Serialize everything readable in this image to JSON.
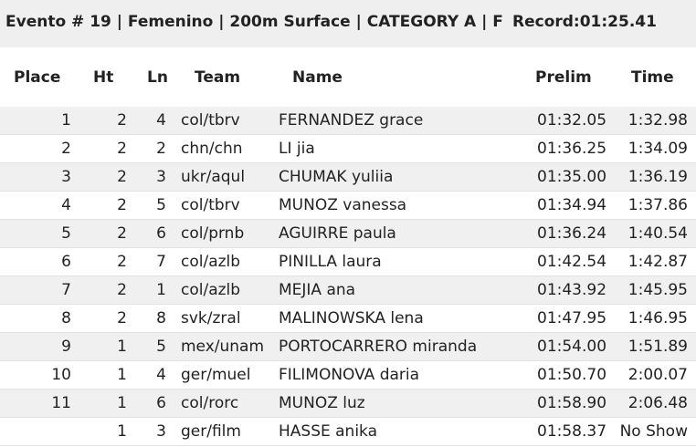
{
  "header": {
    "title": "Evento # 19 | Femenino | 200m Surface | CATEGORY A | F",
    "record": "Record:01:25.41"
  },
  "table": {
    "columns": [
      "Place",
      "Ht",
      "Ln",
      "Team",
      "Name",
      "Prelim",
      "Time"
    ],
    "rows": [
      [
        "1",
        "2",
        "4",
        "col/tbrv",
        "FERNANDEZ grace",
        "01:32.05",
        "1:32.98"
      ],
      [
        "2",
        "2",
        "2",
        "chn/chn",
        "LI jia",
        "01:36.25",
        "1:34.09"
      ],
      [
        "3",
        "2",
        "3",
        "ukr/aqul",
        "CHUMAK yuliia",
        "01:35.00",
        "1:36.19"
      ],
      [
        "4",
        "2",
        "5",
        "col/tbrv",
        "MUNOZ vanessa",
        "01:34.94",
        "1:37.86"
      ],
      [
        "5",
        "2",
        "6",
        "col/prnb",
        "AGUIRRE paula",
        "01:36.24",
        "1:40.54"
      ],
      [
        "6",
        "2",
        "7",
        "col/azlb",
        "PINILLA laura",
        "01:42.54",
        "1:42.87"
      ],
      [
        "7",
        "2",
        "1",
        "col/azlb",
        "MEJIA ana",
        "01:43.92",
        "1:45.95"
      ],
      [
        "8",
        "2",
        "8",
        "svk/zral",
        "MALINOWSKA lena",
        "01:47.95",
        "1:46.95"
      ],
      [
        "9",
        "1",
        "5",
        "mex/unam",
        "PORTOCARRERO miranda",
        "01:54.00",
        "1:51.89"
      ],
      [
        "10",
        "1",
        "4",
        "ger/muel",
        "FILIMONOVA daria",
        "01:50.70",
        "2:00.07"
      ],
      [
        "11",
        "1",
        "6",
        "col/rorc",
        "MUNOZ luz",
        "01:58.90",
        "2:06.48"
      ],
      [
        null,
        "1",
        "3",
        "ger/film",
        "HASSE anika",
        "01:58.37",
        "No Show"
      ]
    ]
  }
}
